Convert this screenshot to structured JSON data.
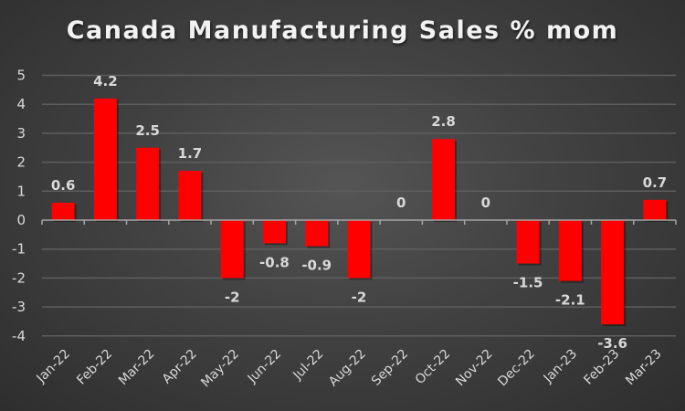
{
  "chart_data": {
    "type": "bar",
    "title": "Canada Manufacturing Sales % mom",
    "xlabel": "",
    "ylabel": "",
    "categories": [
      "Jan-22",
      "Feb-22",
      "Mar-22",
      "Apr-22",
      "May-22",
      "Jun-22",
      "Jul-22",
      "Aug-22",
      "Sep-22",
      "Oct-22",
      "Nov-22",
      "Dec-22",
      "Jan-23",
      "Feb-23",
      "Mar-23"
    ],
    "values": [
      0.6,
      4.2,
      2.5,
      1.7,
      -2,
      -0.8,
      -0.9,
      -2,
      0,
      2.8,
      0,
      -1.5,
      -2.1,
      -3.6,
      0.7
    ],
    "data_labels": [
      "0.6",
      "4.2",
      "2.5",
      "1.7",
      "-2",
      "-0.8",
      "-0.9",
      "-2",
      "0",
      "2.8",
      "0",
      "-1.5",
      "-2.1",
      "-3.6",
      "0.7"
    ],
    "ylim": [
      -4,
      5
    ],
    "yticks": [
      5,
      4,
      3,
      2,
      1,
      0,
      -1,
      -2,
      -3,
      -4
    ],
    "grid": true,
    "legend": "none",
    "colors": {
      "bar": "#ff0000",
      "text": "#d9d9d9",
      "gridline": "#5e5e5e",
      "axis": "#a6a6a6"
    }
  }
}
